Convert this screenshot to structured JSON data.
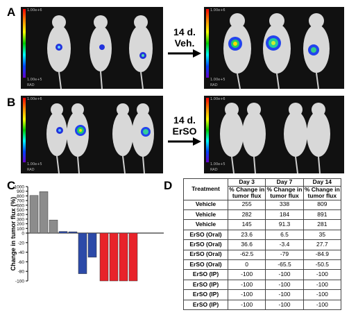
{
  "panels": {
    "a": "A",
    "b": "B",
    "c": "C",
    "d": "D"
  },
  "scale": {
    "top": "1.00e+6",
    "bottom": "1.00e+5",
    "unit": "RAD"
  },
  "arrows": {
    "veh": {
      "line1": "14 d.",
      "line2": "Veh."
    },
    "erso": {
      "line1": "14 d.",
      "line2": "ErSO"
    }
  },
  "chart_data": {
    "type": "bar",
    "ylabel": "Change in tumor flux (%)",
    "ylim": [
      -100,
      1000
    ],
    "yticks": [
      1000,
      900,
      800,
      700,
      600,
      500,
      400,
      300,
      200,
      100,
      0,
      -20,
      -40,
      -60,
      -80,
      -100
    ],
    "yticklabels": [
      "1000",
      "900",
      "800",
      "700",
      "600",
      "500",
      "400",
      "300",
      "200",
      "100",
      "0",
      "-20",
      "-40",
      "-60",
      "-80",
      "-100"
    ],
    "values": [
      809,
      891,
      281,
      35,
      27.7,
      -84.9,
      -50.5,
      -100,
      -100,
      -100,
      -100
    ],
    "colors": [
      "#8c8c8c",
      "#8c8c8c",
      "#8c8c8c",
      "#2c4aa8",
      "#2c4aa8",
      "#2c4aa8",
      "#2c4aa8",
      "#e8232a",
      "#e8232a",
      "#e8232a",
      "#e8232a"
    ]
  },
  "table": {
    "headers": [
      {
        "top": "",
        "bottom": "Treatment"
      },
      {
        "top": "Day 3",
        "bottom": "% Change in tumor flux"
      },
      {
        "top": "Day 7",
        "bottom": "% Change in tumor flux"
      },
      {
        "top": "Day 14",
        "bottom": "% Change in tumor flux"
      }
    ],
    "rows": [
      [
        "Vehicle",
        "255",
        "338",
        "809"
      ],
      [
        "Vehicle",
        "282",
        "184",
        "891"
      ],
      [
        "Vehicle",
        "145",
        "91.3",
        "281"
      ],
      [
        "ErSO (Oral)",
        "23.6",
        "6.5",
        "35"
      ],
      [
        "ErSO (Oral)",
        "36.6",
        "-3.4",
        "27.7"
      ],
      [
        "ErSO (Oral)",
        "-62.5",
        "-79",
        "-84.9"
      ],
      [
        "ErSO (Oral)",
        "0",
        "-65.5",
        "-50.5"
      ],
      [
        "ErSO (IP)",
        "-100",
        "-100",
        "-100"
      ],
      [
        "ErSO (IP)",
        "-100",
        "-100",
        "-100"
      ],
      [
        "ErSO (IP)",
        "-100",
        "-100",
        "-100"
      ],
      [
        "ErSO (IP)",
        "-100",
        "-100",
        "-100"
      ]
    ]
  }
}
